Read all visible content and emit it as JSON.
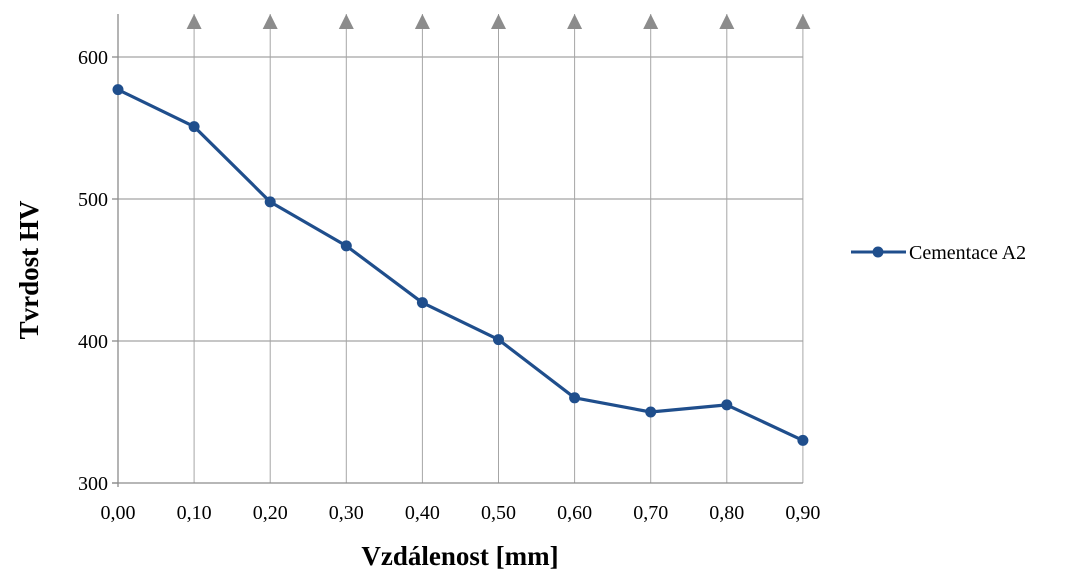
{
  "chart_data": {
    "type": "line",
    "title": "",
    "xlabel": "Vzdálenost [mm]",
    "ylabel": "Tvrdost HV",
    "x": [
      "0,00",
      "0,10",
      "0,20",
      "0,30",
      "0,40",
      "0,50",
      "0,60",
      "0,70",
      "0,80",
      "0,90"
    ],
    "ylim": [
      300,
      600
    ],
    "yticks": [
      300,
      400,
      500,
      600
    ],
    "grid": true,
    "legend_position": "right",
    "series": [
      {
        "name": "Cementace A2",
        "color": "#1f4e8c",
        "values": [
          577,
          551,
          498,
          467,
          427,
          401,
          360,
          350,
          355,
          330
        ]
      }
    ],
    "markers": {
      "shape": "triangle",
      "color": "#8c8c8c",
      "at": [
        "0,10",
        "0,20",
        "0,30",
        "0,40",
        "0,50",
        "0,60",
        "0,70",
        "0,80",
        "0,90"
      ]
    }
  }
}
